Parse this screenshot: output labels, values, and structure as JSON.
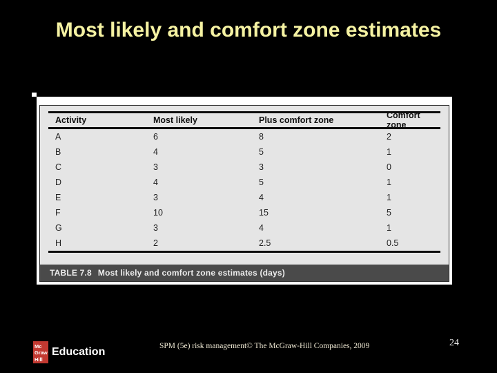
{
  "slide": {
    "title": "Most likely and comfort zone estimates",
    "page_number": "24",
    "footer": {
      "logo": {
        "line1": "Mc",
        "line2": "Graw",
        "line3": "Hill",
        "brand": "Education"
      },
      "credit": "SPM (5e) risk management© The McGraw-Hill Companies, 2009"
    }
  },
  "figure": {
    "caption_label": "TABLE 7.8",
    "caption_text": "Most likely and comfort zone estimates (days)",
    "table": {
      "columns": [
        "Activity",
        "Most likely",
        "Plus comfort zone",
        "Comfort zone"
      ],
      "rows": [
        {
          "activity": "A",
          "most_likely": "6",
          "plus_comfort_zone": "8",
          "comfort_zone": "2"
        },
        {
          "activity": "B",
          "most_likely": "4",
          "plus_comfort_zone": "5",
          "comfort_zone": "1"
        },
        {
          "activity": "C",
          "most_likely": "3",
          "plus_comfort_zone": "3",
          "comfort_zone": "0"
        },
        {
          "activity": "D",
          "most_likely": "4",
          "plus_comfort_zone": "5",
          "comfort_zone": "1"
        },
        {
          "activity": "E",
          "most_likely": "3",
          "plus_comfort_zone": "4",
          "comfort_zone": "1"
        },
        {
          "activity": "F",
          "most_likely": "10",
          "plus_comfort_zone": "15",
          "comfort_zone": "5"
        },
        {
          "activity": "G",
          "most_likely": "3",
          "plus_comfort_zone": "4",
          "comfort_zone": "1"
        },
        {
          "activity": "H",
          "most_likely": "2",
          "plus_comfort_zone": "2.5",
          "comfort_zone": "0.5"
        }
      ]
    }
  },
  "colors": {
    "background": "#000000",
    "title_text": "#F5F2A2",
    "table_background": "#E5E5E5",
    "caption_band": "#4A4A4A",
    "logo_red": "#C23931"
  }
}
